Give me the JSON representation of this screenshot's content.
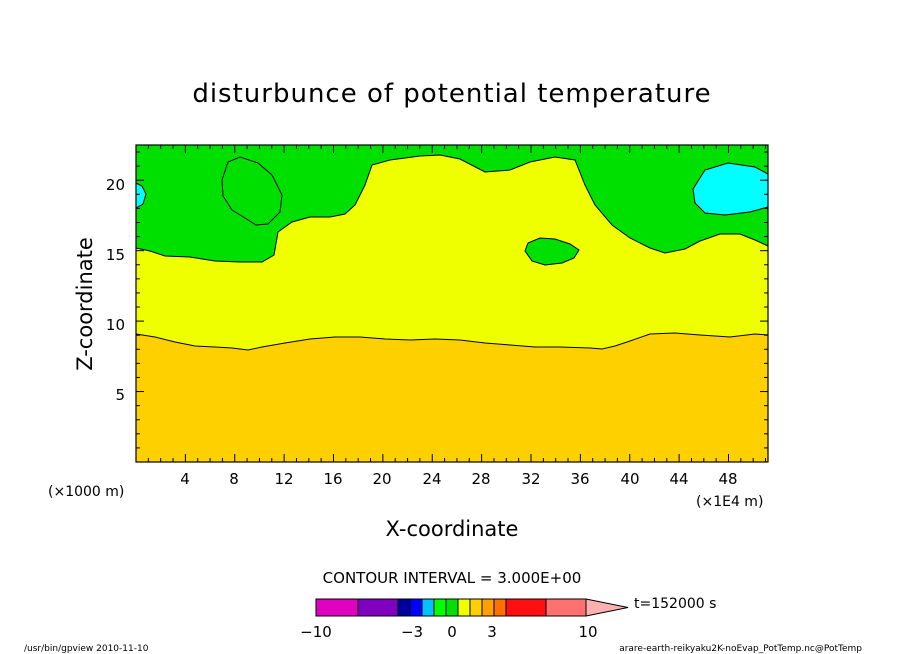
{
  "chart_data": {
    "type": "contour",
    "title": "disturbunce of potential temperature",
    "xlabel": "X-coordinate",
    "ylabel": "Z-coordinate",
    "x_unit_left": "(×1000 m)",
    "x_unit_right": "(×1E4 m)",
    "xlim": [
      0,
      51.2
    ],
    "ylim": [
      0,
      22.5
    ],
    "x_ticks": [
      "4",
      "8",
      "12",
      "16",
      "20",
      "24",
      "28",
      "32",
      "36",
      "40",
      "44",
      "48"
    ],
    "y_ticks": [
      "5",
      "10",
      "15",
      "20"
    ],
    "x_tick_values": [
      4,
      8,
      12,
      16,
      20,
      24,
      28,
      32,
      36,
      40,
      44,
      48
    ],
    "y_tick_values": [
      5,
      10,
      15,
      20
    ],
    "contour_interval_label": "CONTOUR INTERVAL = 3.000E+00",
    "time_label": "t=152000 s",
    "colorbar_labels": [
      "−10",
      "−3",
      "0",
      "3",
      "10"
    ],
    "colorbar_colors": [
      "#e000c0",
      "#8000c0",
      "#0000a0",
      "#0000ff",
      "#00c0ff",
      "#00ff00",
      "#00e000",
      "#f0ff00",
      "#ffd000",
      "#ffa000",
      "#ff7000",
      "#ff1010",
      "#ff7070",
      "#ffb0b0"
    ],
    "regions": {
      "lower": {
        "color": "#ffd000",
        "boundary_z": [
          9.3,
          9.1,
          8.7,
          8.5,
          8.2,
          8.5,
          8.8,
          9.1,
          9.0,
          8.9,
          8.8,
          8.7,
          8.5,
          8.4,
          8.3,
          8.8,
          9.3,
          9.2,
          9.3
        ]
      },
      "middle": {
        "color": "#f0ff00"
      },
      "upper": {
        "color": "#00e000"
      },
      "cool_patch": {
        "color": "#00ffff"
      }
    },
    "footer_left": "/usr/bin/gpview   2010-11-10",
    "footer_right": "arare-earth-reikyaku2K-noEvap_PotTemp.nc@PotTemp"
  }
}
